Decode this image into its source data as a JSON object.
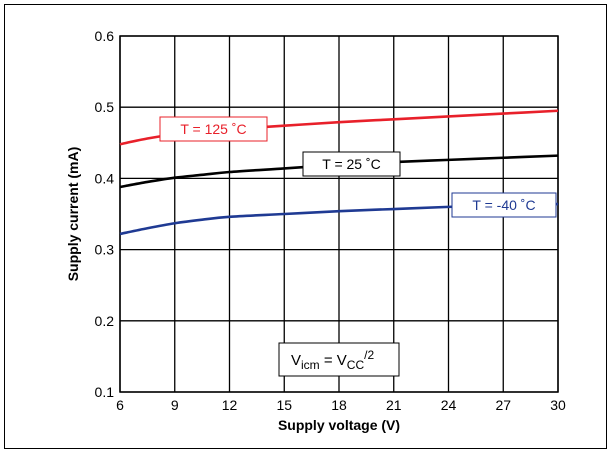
{
  "chart_data": {
    "type": "line",
    "title": "",
    "xlabel": "Supply voltage (V)",
    "ylabel": "Supply current (mA)",
    "xlim": [
      6,
      30
    ],
    "ylim": [
      0.1,
      0.6
    ],
    "xticks": [
      6,
      9,
      12,
      15,
      18,
      21,
      24,
      27,
      30
    ],
    "yticks": [
      0.1,
      0.2,
      0.3,
      0.4,
      0.5,
      0.6
    ],
    "ytick_labels": [
      "0.1",
      "0.2",
      "0.3",
      "0.4",
      "0.5",
      "0.6"
    ],
    "grid": true,
    "x": [
      6,
      7.5,
      9,
      10.5,
      12,
      15,
      18,
      21,
      24,
      27,
      30
    ],
    "series": [
      {
        "name": "T = 125 ˚C",
        "color": "#e8202a",
        "values": [
          0.448,
          0.456,
          0.462,
          0.466,
          0.469,
          0.474,
          0.479,
          0.483,
          0.487,
          0.491,
          0.495
        ]
      },
      {
        "name": "T = 25 ˚C",
        "color": "#000000",
        "values": [
          0.388,
          0.395,
          0.401,
          0.405,
          0.409,
          0.414,
          0.419,
          0.423,
          0.426,
          0.429,
          0.432
        ]
      },
      {
        "name": "T = -40 ˚C",
        "color": "#1f3a93",
        "values": [
          0.322,
          0.33,
          0.337,
          0.342,
          0.346,
          0.35,
          0.354,
          0.357,
          0.36,
          0.362,
          0.364
        ]
      }
    ],
    "annotation": {
      "V": "V",
      "icm": "icm",
      "eq": " = V",
      "CC": "CC",
      "div": "/2"
    }
  }
}
